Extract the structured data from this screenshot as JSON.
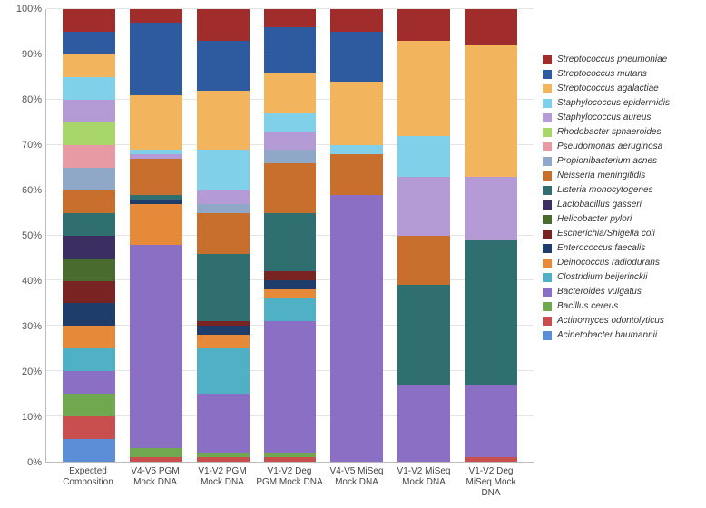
{
  "chart": {
    "type": "stacked-bar",
    "background_color": "#ffffff",
    "grid_color": "#e5e5e5",
    "axis_color": "#bbbbbb",
    "ylim": [
      0,
      100
    ],
    "ytick_step": 10,
    "y_ticks": [
      "0%",
      "10%",
      "20%",
      "30%",
      "40%",
      "50%",
      "60%",
      "70%",
      "80%",
      "90%",
      "100%"
    ],
    "label_fontsize": 10,
    "tick_fontsize": 11,
    "species": [
      {
        "key": "s_pneumoniae",
        "label": "Streptococcus pneumoniae",
        "color": "#a02c2c"
      },
      {
        "key": "s_mutans",
        "label": "Streptococcus mutans",
        "color": "#2e5aa0"
      },
      {
        "key": "s_agalactiae",
        "label": "Streptococcus agalactiae",
        "color": "#f2b55e"
      },
      {
        "key": "s_epidermidis",
        "label": "Staphylococcus epidermidis",
        "color": "#7fd0e8"
      },
      {
        "key": "s_aureus",
        "label": "Staphylococcus aureus",
        "color": "#b49bd6"
      },
      {
        "key": "r_sphaeroides",
        "label": "Rhodobacter sphaeroides",
        "color": "#a8d66b"
      },
      {
        "key": "p_aeruginosa",
        "label": "Pseudomonas aeruginosa",
        "color": "#e89aa4"
      },
      {
        "key": "p_acnes",
        "label": "Propionibacterium acnes",
        "color": "#8fa8c8"
      },
      {
        "key": "n_meningitidis",
        "label": "Neisseria meningitidis",
        "color": "#c96f2e"
      },
      {
        "key": "l_monocytogenes",
        "label": "Listeria monocytogenes",
        "color": "#2f6f70"
      },
      {
        "key": "l_gasseri",
        "label": "Lactobacillus gasseri",
        "color": "#3a2f60"
      },
      {
        "key": "h_pylori",
        "label": "Helicobacter pylori",
        "color": "#4a6b2e"
      },
      {
        "key": "e_coli",
        "label": "Escherichia/Shigella coli",
        "color": "#7a2323"
      },
      {
        "key": "e_faecalis",
        "label": "Enterococcus faecalis",
        "color": "#1f3d6b"
      },
      {
        "key": "d_radiodurans",
        "label": "Deinococcus radiodurans",
        "color": "#e68a3a"
      },
      {
        "key": "c_beijerinckii",
        "label": "Clostridium beijerinckii",
        "color": "#4fb0c6"
      },
      {
        "key": "b_vulgatus",
        "label": "Bacteroides vulgatus",
        "color": "#8a6fc4"
      },
      {
        "key": "b_cereus",
        "label": "Bacillus cereus",
        "color": "#6fa84f"
      },
      {
        "key": "a_odontolyticus",
        "label": "Actinomyces odontolyticus",
        "color": "#c94f4f"
      },
      {
        "key": "a_baumannii",
        "label": "Acinetobacter baumannii",
        "color": "#5b8ed6"
      }
    ],
    "categories": [
      {
        "label": "Expected Composition",
        "values": {
          "a_baumannii": 5,
          "a_odontolyticus": 5,
          "b_cereus": 5,
          "b_vulgatus": 5,
          "c_beijerinckii": 5,
          "d_radiodurans": 5,
          "e_faecalis": 5,
          "e_coli": 5,
          "h_pylori": 5,
          "l_gasseri": 5,
          "l_monocytogenes": 5,
          "n_meningitidis": 5,
          "p_acnes": 5,
          "p_aeruginosa": 5,
          "r_sphaeroides": 5,
          "s_aureus": 5,
          "s_epidermidis": 5,
          "s_agalactiae": 5,
          "s_mutans": 5,
          "s_pneumoniae": 5
        }
      },
      {
        "label": "V4-V5 PGM Mock DNA",
        "values": {
          "a_baumannii": 0,
          "a_odontolyticus": 1,
          "b_cereus": 2,
          "b_vulgatus": 45,
          "c_beijerinckii": 0,
          "d_radiodurans": 9,
          "e_faecalis": 1,
          "e_coli": 0,
          "h_pylori": 0,
          "l_gasseri": 0,
          "l_monocytogenes": 1,
          "n_meningitidis": 8,
          "p_acnes": 0,
          "p_aeruginosa": 0,
          "r_sphaeroides": 0,
          "s_aureus": 1,
          "s_epidermidis": 1,
          "s_agalactiae": 12,
          "s_mutans": 16,
          "s_pneumoniae": 3
        }
      },
      {
        "label": "V1-V2 PGM Mock DNA",
        "values": {
          "a_baumannii": 0,
          "a_odontolyticus": 1,
          "b_cereus": 1,
          "b_vulgatus": 13,
          "c_beijerinckii": 10,
          "d_radiodurans": 3,
          "e_faecalis": 2,
          "e_coli": 1,
          "h_pylori": 0,
          "l_gasseri": 0,
          "l_monocytogenes": 15,
          "n_meningitidis": 9,
          "p_acnes": 2,
          "p_aeruginosa": 0,
          "r_sphaeroides": 0,
          "s_aureus": 3,
          "s_epidermidis": 9,
          "s_agalactiae": 13,
          "s_mutans": 11,
          "s_pneumoniae": 7
        }
      },
      {
        "label": "V1-V2 Deg PGM Mock DNA",
        "values": {
          "a_baumannii": 0,
          "a_odontolyticus": 1,
          "b_cereus": 1,
          "b_vulgatus": 29,
          "c_beijerinckii": 5,
          "d_radiodurans": 2,
          "e_faecalis": 2,
          "e_coli": 2,
          "h_pylori": 0,
          "l_gasseri": 0,
          "l_monocytogenes": 13,
          "n_meningitidis": 11,
          "p_acnes": 3,
          "p_aeruginosa": 0,
          "r_sphaeroides": 0,
          "s_aureus": 4,
          "s_epidermidis": 4,
          "s_agalactiae": 9,
          "s_mutans": 10,
          "s_pneumoniae": 4
        }
      },
      {
        "label": "V4-V5 MiSeq Mock DNA",
        "values": {
          "a_baumannii": 0,
          "a_odontolyticus": 0,
          "b_cereus": 0,
          "b_vulgatus": 59,
          "c_beijerinckii": 0,
          "d_radiodurans": 0,
          "e_faecalis": 0,
          "e_coli": 0,
          "h_pylori": 0,
          "l_gasseri": 0,
          "l_monocytogenes": 0,
          "n_meningitidis": 9,
          "p_acnes": 0,
          "p_aeruginosa": 0,
          "r_sphaeroides": 0,
          "s_aureus": 0,
          "s_epidermidis": 2,
          "s_agalactiae": 14,
          "s_mutans": 11,
          "s_pneumoniae": 5
        }
      },
      {
        "label": "V1-V2 MiSeq Mock DNA",
        "values": {
          "a_baumannii": 0,
          "a_odontolyticus": 0,
          "b_cereus": 0,
          "b_vulgatus": 17,
          "c_beijerinckii": 0,
          "d_radiodurans": 0,
          "e_faecalis": 0,
          "e_coli": 0,
          "h_pylori": 0,
          "l_gasseri": 0,
          "l_monocytogenes": 22,
          "n_meningitidis": 11,
          "p_acnes": 0,
          "p_aeruginosa": 0,
          "r_sphaeroides": 0,
          "s_aureus": 13,
          "s_epidermidis": 9,
          "s_agalactiae": 21,
          "s_mutans": 0,
          "s_pneumoniae": 7
        }
      },
      {
        "label": "V1-V2 Deg MiSeq Mock DNA",
        "values": {
          "a_baumannii": 0,
          "a_odontolyticus": 1,
          "b_cereus": 0,
          "b_vulgatus": 16,
          "c_beijerinckii": 0,
          "d_radiodurans": 0,
          "e_faecalis": 0,
          "e_coli": 0,
          "h_pylori": 0,
          "l_gasseri": 0,
          "l_monocytogenes": 32,
          "n_meningitidis": 0,
          "p_acnes": 0,
          "p_aeruginosa": 0,
          "r_sphaeroides": 0,
          "s_aureus": 14,
          "s_epidermidis": 0,
          "s_agalactiae": 29,
          "s_mutans": 0,
          "s_pneumoniae": 8
        }
      }
    ]
  }
}
